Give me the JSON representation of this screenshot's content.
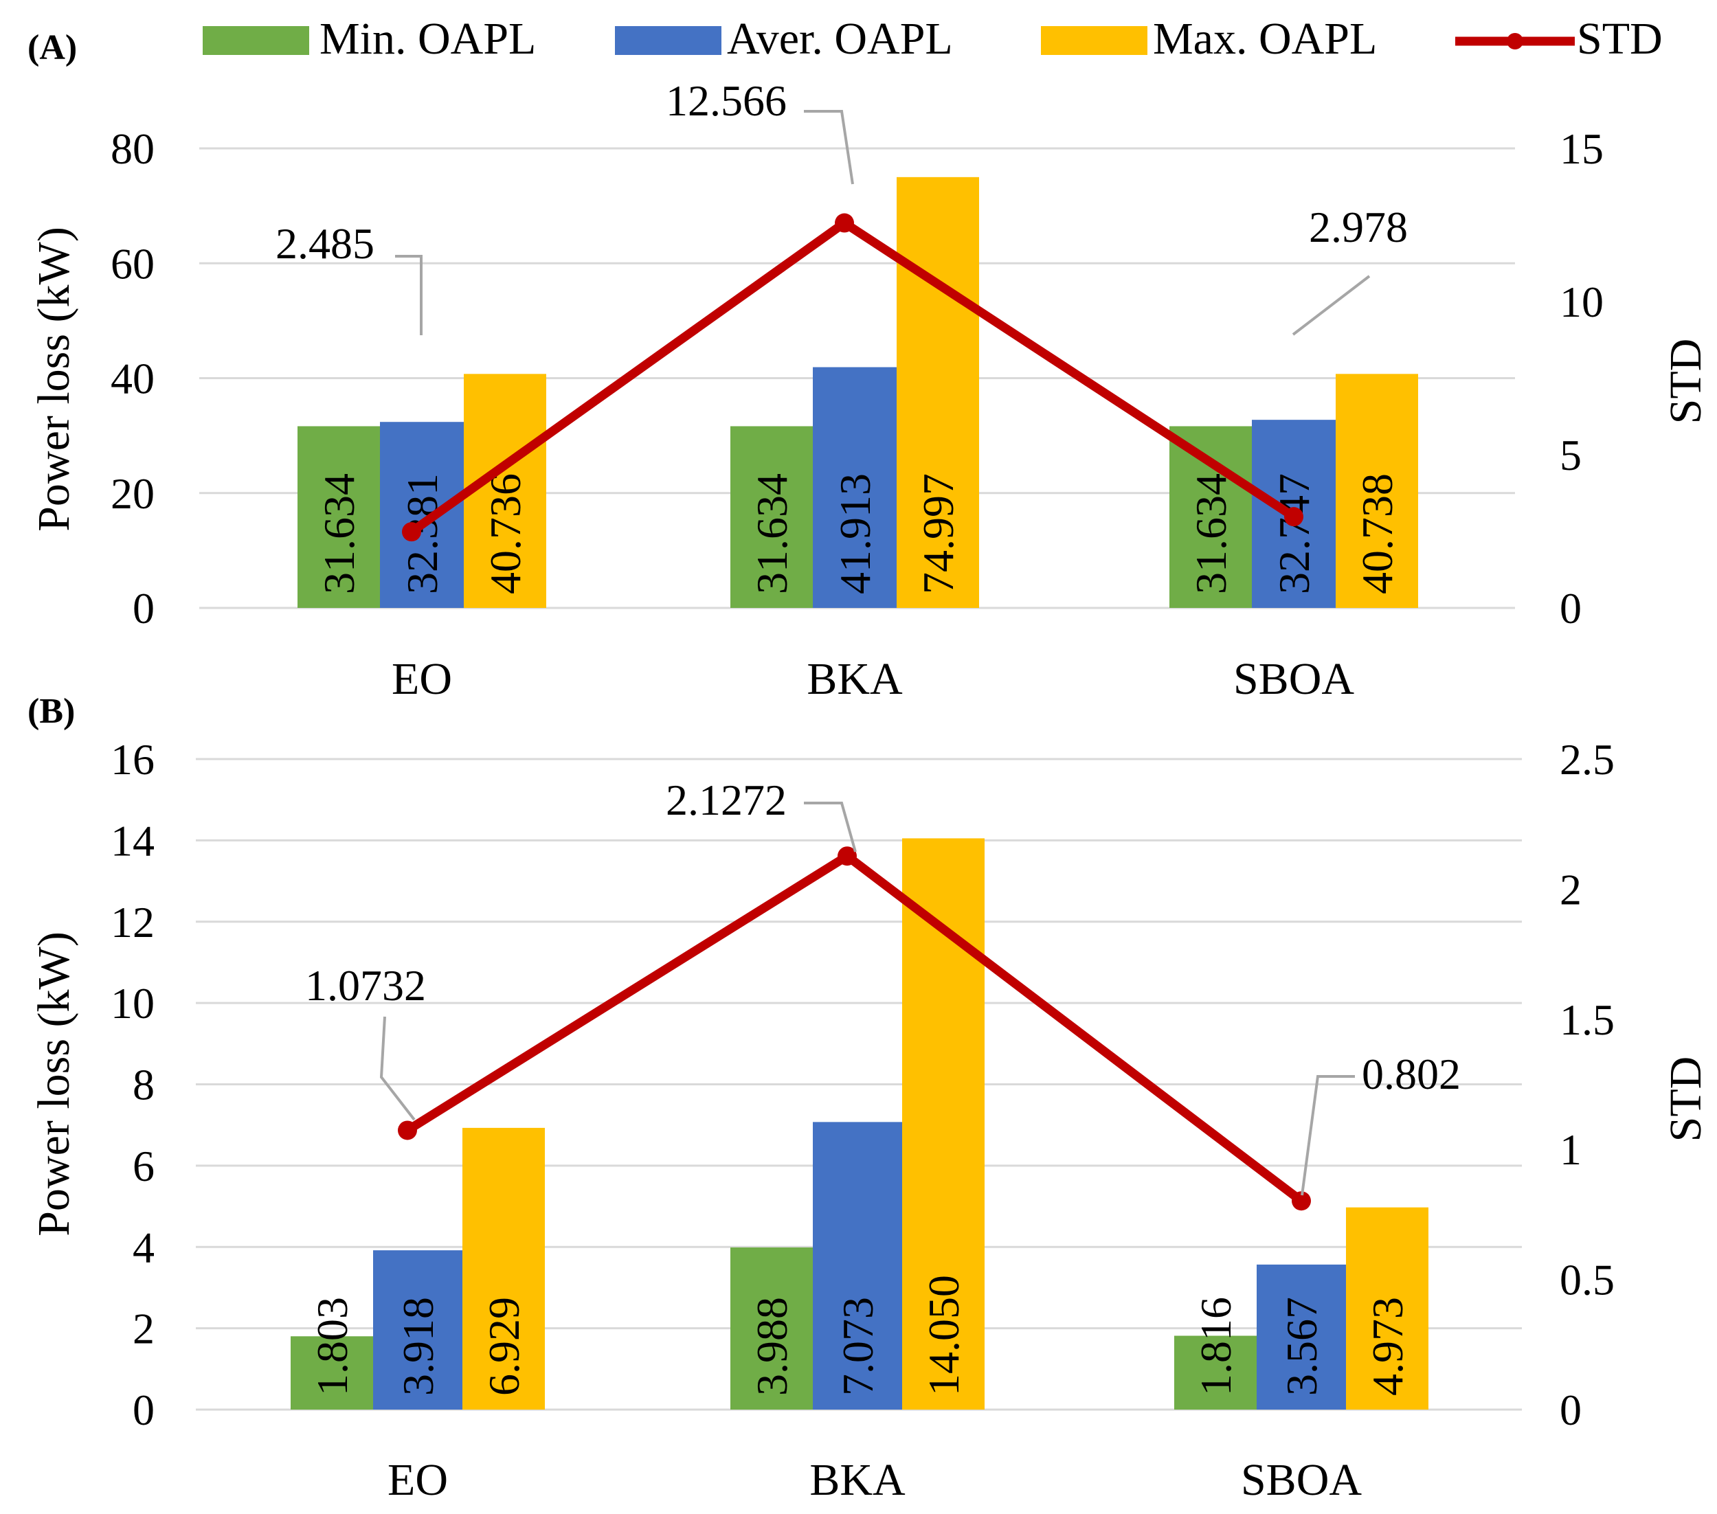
{
  "legend": {
    "items": [
      {
        "name": "Min. OAPL",
        "color": "#70ad47",
        "kind": "bar"
      },
      {
        "name": "Aver. OAPL",
        "color": "#4472c4",
        "kind": "bar"
      },
      {
        "name": "Max. OAPL",
        "color": "#ffc000",
        "kind": "bar"
      },
      {
        "name": "STD",
        "color": "#c00000",
        "kind": "line"
      }
    ]
  },
  "chart_data": [
    {
      "panel_label": "(A)",
      "type": "bar",
      "categories": [
        "EO",
        "BKA",
        "SBOA"
      ],
      "series": [
        {
          "name": "Min. OAPL",
          "values": [
            31.634,
            31.634,
            31.634
          ],
          "labels": [
            "31.634",
            "31.634",
            "31.634"
          ]
        },
        {
          "name": "Aver. OAPL",
          "values": [
            32.381,
            41.913,
            32.747
          ],
          "labels": [
            "32.381",
            "41.913",
            "32.747"
          ]
        },
        {
          "name": "Max. OAPL",
          "values": [
            40.736,
            74.997,
            40.738
          ],
          "labels": [
            "40.736",
            "74.997",
            "40.738"
          ]
        }
      ],
      "line_series": {
        "name": "STD",
        "values": [
          2.485,
          12.566,
          2.978
        ],
        "labels": [
          "2.485",
          "12.566",
          "2.978"
        ],
        "axis": "right"
      },
      "ylabel": "Power loss (kW)",
      "ylim": [
        0,
        80
      ],
      "yticks": [
        "0",
        "20",
        "40",
        "60",
        "80"
      ],
      "y2label": "STD",
      "y2lim": [
        0,
        15
      ],
      "y2ticks": [
        "0",
        "5",
        "10",
        "15"
      ],
      "grid": true,
      "legend_position": "top"
    },
    {
      "panel_label": "(B)",
      "type": "bar",
      "categories": [
        "EO",
        "BKA",
        "SBOA"
      ],
      "series": [
        {
          "name": "Min. OAPL",
          "values": [
            1.803,
            3.988,
            1.816
          ],
          "labels": [
            "1.803",
            "3.988",
            "1.816"
          ]
        },
        {
          "name": "Aver. OAPL",
          "values": [
            3.918,
            7.073,
            3.567
          ],
          "labels": [
            "3.918",
            "7.073",
            "3.567"
          ]
        },
        {
          "name": "Max. OAPL",
          "values": [
            6.929,
            14.05,
            4.973
          ],
          "labels": [
            "6.929",
            "14.050",
            "4.973"
          ]
        }
      ],
      "line_series": {
        "name": "STD",
        "values": [
          1.0732,
          2.1272,
          0.802
        ],
        "labels": [
          "1.0732",
          "2.1272",
          "0.802"
        ],
        "axis": "right"
      },
      "ylabel": "Power loss (kW)",
      "ylim": [
        0,
        16
      ],
      "yticks": [
        "0",
        "2",
        "4",
        "6",
        "8",
        "10",
        "12",
        "14",
        "16"
      ],
      "y2label": "STD",
      "y2lim": [
        0,
        2.5
      ],
      "y2ticks": [
        "0",
        "0.5",
        "1",
        "1.5",
        "2",
        "2.5"
      ],
      "grid": true,
      "legend_position": "top"
    }
  ]
}
